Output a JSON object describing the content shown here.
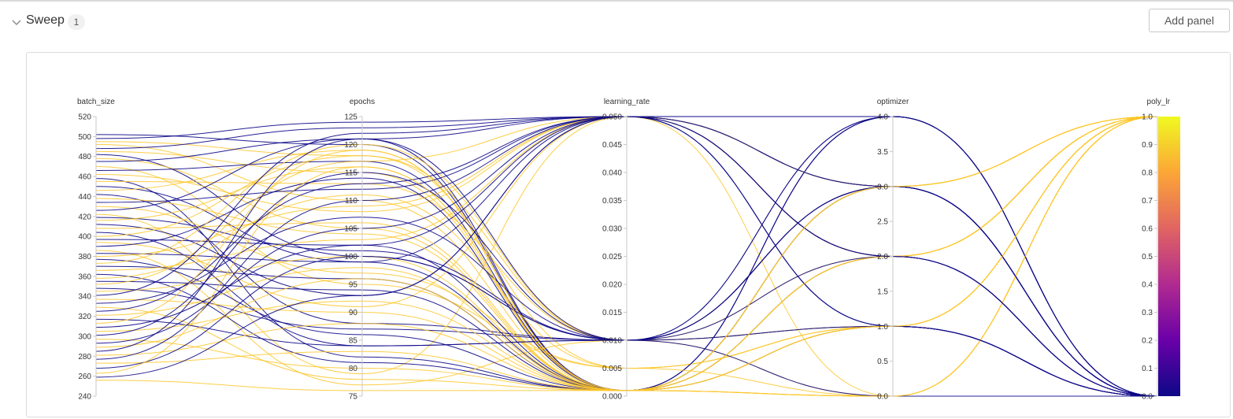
{
  "header": {
    "title": "Sweep",
    "count": "1",
    "add_panel_label": "Add panel"
  },
  "colors": {
    "line_low": "#0d0887",
    "line_high": "#fdc527",
    "axis": "#c8c8c8",
    "label": "#333333",
    "colorbar": [
      "#0d0887",
      "#6a00a8",
      "#b12a90",
      "#e16462",
      "#fca636",
      "#f0f921"
    ]
  },
  "chart_data": {
    "type": "parallel_coordinates",
    "color_dimension": "poly_lr",
    "axes": [
      {
        "name": "batch_size",
        "range": [
          240,
          520
        ],
        "ticks": [
          "520",
          "500",
          "480",
          "460",
          "440",
          "420",
          "400",
          "380",
          "360",
          "340",
          "320",
          "300",
          "280",
          "260",
          "240"
        ],
        "tick_values": [
          520,
          500,
          480,
          460,
          440,
          420,
          400,
          380,
          360,
          340,
          320,
          300,
          280,
          260,
          240
        ]
      },
      {
        "name": "epochs",
        "range": [
          75,
          125
        ],
        "ticks": [
          "125",
          "120",
          "115",
          "110",
          "105",
          "100",
          "95",
          "90",
          "85",
          "80",
          "75"
        ],
        "tick_values": [
          125,
          120,
          115,
          110,
          105,
          100,
          95,
          90,
          85,
          80,
          75
        ]
      },
      {
        "name": "learning_rate",
        "range": [
          0,
          0.05
        ],
        "ticks": [
          "0.050",
          "0.045",
          "0.040",
          "0.035",
          "0.030",
          "0.025",
          "0.020",
          "0.015",
          "0.010",
          "0.005",
          "0.000"
        ],
        "tick_values": [
          0.05,
          0.045,
          0.04,
          0.035,
          0.03,
          0.025,
          0.02,
          0.015,
          0.01,
          0.005,
          0
        ]
      },
      {
        "name": "optimizer",
        "range": [
          0,
          4
        ],
        "ticks": [
          "4.0",
          "3.5",
          "3.0",
          "2.5",
          "2.0",
          "1.5",
          "1.0",
          "0.5",
          "0.0"
        ],
        "tick_values": [
          4,
          3.5,
          3,
          2.5,
          2,
          1.5,
          1,
          0.5,
          0
        ]
      },
      {
        "name": "poly_lr",
        "range": [
          0,
          1
        ],
        "ticks": [
          "1.0",
          "0.9",
          "0.8",
          "0.7",
          "0.6",
          "0.5",
          "0.4",
          "0.3",
          "0.2",
          "0.1",
          "0.0"
        ],
        "tick_values": [
          1,
          0.9,
          0.8,
          0.7,
          0.6,
          0.5,
          0.4,
          0.3,
          0.2,
          0.1,
          0
        ]
      }
    ],
    "runs": [
      [
        502,
        120,
        0.001,
        4,
        0
      ],
      [
        498,
        124,
        0.05,
        3,
        0
      ],
      [
        495,
        118,
        0.01,
        2,
        1
      ],
      [
        492,
        110,
        0.001,
        0,
        1
      ],
      [
        488,
        123,
        0.05,
        4,
        0
      ],
      [
        485,
        115,
        0.001,
        1,
        1
      ],
      [
        482,
        100,
        0.01,
        3,
        0
      ],
      [
        478,
        105,
        0.001,
        2,
        1
      ],
      [
        475,
        121,
        0.05,
        3,
        0
      ],
      [
        470,
        95,
        0.005,
        1,
        1
      ],
      [
        466,
        117,
        0.001,
        4,
        0
      ],
      [
        462,
        108,
        0.05,
        0,
        1
      ],
      [
        458,
        82,
        0.001,
        2,
        0
      ],
      [
        455,
        113,
        0.01,
        3,
        1
      ],
      [
        450,
        99,
        0.05,
        1,
        0
      ],
      [
        446,
        119,
        0.001,
        0,
        1
      ],
      [
        442,
        88,
        0.01,
        3,
        0
      ],
      [
        438,
        104,
        0.001,
        2,
        1
      ],
      [
        434,
        112,
        0.05,
        4,
        0
      ],
      [
        430,
        97,
        0.005,
        1,
        1
      ],
      [
        426,
        121,
        0.001,
        3,
        0
      ],
      [
        422,
        79,
        0.05,
        2,
        1
      ],
      [
        419,
        101,
        0.01,
        1,
        0
      ],
      [
        416,
        116,
        0.001,
        0,
        1
      ],
      [
        412,
        93,
        0.05,
        3,
        0
      ],
      [
        408,
        106,
        0.001,
        2,
        1
      ],
      [
        404,
        84,
        0.01,
        4,
        0
      ],
      [
        400,
        118,
        0.005,
        1,
        1
      ],
      [
        397,
        102,
        0.001,
        3,
        0
      ],
      [
        394,
        91,
        0.05,
        2,
        1
      ],
      [
        390,
        114,
        0.001,
        1,
        0
      ],
      [
        386,
        77,
        0.01,
        0,
        1
      ],
      [
        383,
        99,
        0.001,
        3,
        0
      ],
      [
        380,
        109,
        0.05,
        2,
        1
      ],
      [
        377,
        86,
        0.001,
        4,
        0
      ],
      [
        373,
        120,
        0.01,
        1,
        1
      ],
      [
        370,
        96,
        0.001,
        2,
        0
      ],
      [
        366,
        103,
        0.05,
        3,
        1
      ],
      [
        362,
        81,
        0.001,
        1,
        0
      ],
      [
        358,
        111,
        0.005,
        0,
        1
      ],
      [
        355,
        94,
        0.001,
        3,
        0
      ],
      [
        352,
        117,
        0.05,
        2,
        1
      ],
      [
        348,
        87,
        0.01,
        1,
        0
      ],
      [
        345,
        100,
        0.001,
        3,
        1
      ],
      [
        341,
        122,
        0.05,
        2,
        0
      ],
      [
        337,
        90,
        0.001,
        1,
        1
      ],
      [
        333,
        107,
        0.01,
        4,
        0
      ],
      [
        329,
        78,
        0.001,
        2,
        1
      ],
      [
        325,
        113,
        0.05,
        3,
        0
      ],
      [
        321,
        98,
        0.001,
        1,
        1
      ],
      [
        317,
        84,
        0.01,
        0,
        0
      ],
      [
        313,
        119,
        0.001,
        3,
        1
      ],
      [
        309,
        102,
        0.05,
        2,
        0
      ],
      [
        305,
        92,
        0.001,
        1,
        1
      ],
      [
        301,
        115,
        0.01,
        3,
        0
      ],
      [
        297,
        80,
        0.001,
        2,
        1
      ],
      [
        293,
        105,
        0.05,
        1,
        0
      ],
      [
        289,
        96,
        0.001,
        0,
        1
      ],
      [
        285,
        121,
        0.01,
        2,
        0
      ],
      [
        281,
        88,
        0.001,
        3,
        1
      ],
      [
        277,
        110,
        0.05,
        1,
        0
      ],
      [
        273,
        83,
        0.001,
        2,
        1
      ],
      [
        268,
        100,
        0.01,
        3,
        0
      ],
      [
        263,
        116,
        0.001,
        1,
        1
      ],
      [
        259,
        93,
        0.05,
        2,
        0
      ],
      [
        256,
        76,
        0.001,
        3,
        1
      ]
    ]
  }
}
